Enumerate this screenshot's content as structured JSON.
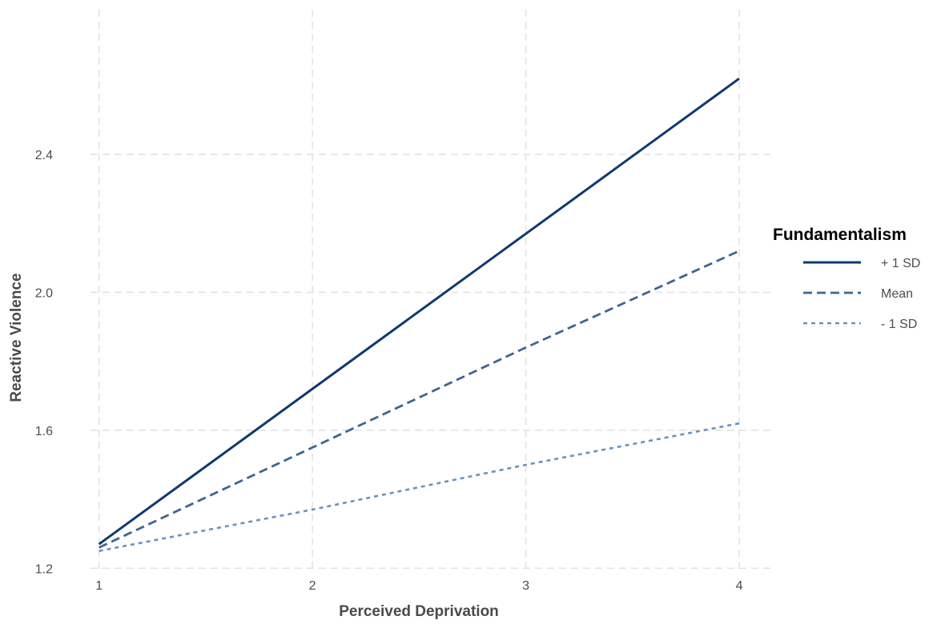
{
  "chart_data": {
    "type": "line",
    "title": "",
    "xlabel": "Perceived Deprivation",
    "ylabel": "Reactive Violence",
    "xlim": [
      0.96,
      4.15
    ],
    "ylim": [
      1.196,
      2.82
    ],
    "x_ticks": [
      1,
      2,
      3,
      4
    ],
    "x_tick_labels": [
      "1",
      "2",
      "3",
      "4"
    ],
    "y_ticks": [
      1.2,
      1.6,
      2.0,
      2.4
    ],
    "y_tick_labels": [
      "1.2",
      "1.6",
      "2.0",
      "2.4"
    ],
    "grid": true,
    "legend": {
      "title": "Fundamentalism",
      "placement": "right"
    },
    "series": [
      {
        "name": "+ 1 SD",
        "line_style": "solid",
        "color": "#0f3a6e",
        "x": [
          1,
          2,
          3,
          4
        ],
        "y": [
          1.27,
          1.72,
          2.17,
          2.62
        ]
      },
      {
        "name": "Mean",
        "line_style": "dashed",
        "color": "#3e6590",
        "x": [
          1,
          2,
          3,
          4
        ],
        "y": [
          1.26,
          1.55,
          1.84,
          2.12
        ]
      },
      {
        "name": "- 1 SD",
        "line_style": "dotted",
        "color": "#6a93bd",
        "x": [
          1,
          2,
          3,
          4
        ],
        "y": [
          1.25,
          1.37,
          1.5,
          1.62
        ]
      }
    ]
  }
}
